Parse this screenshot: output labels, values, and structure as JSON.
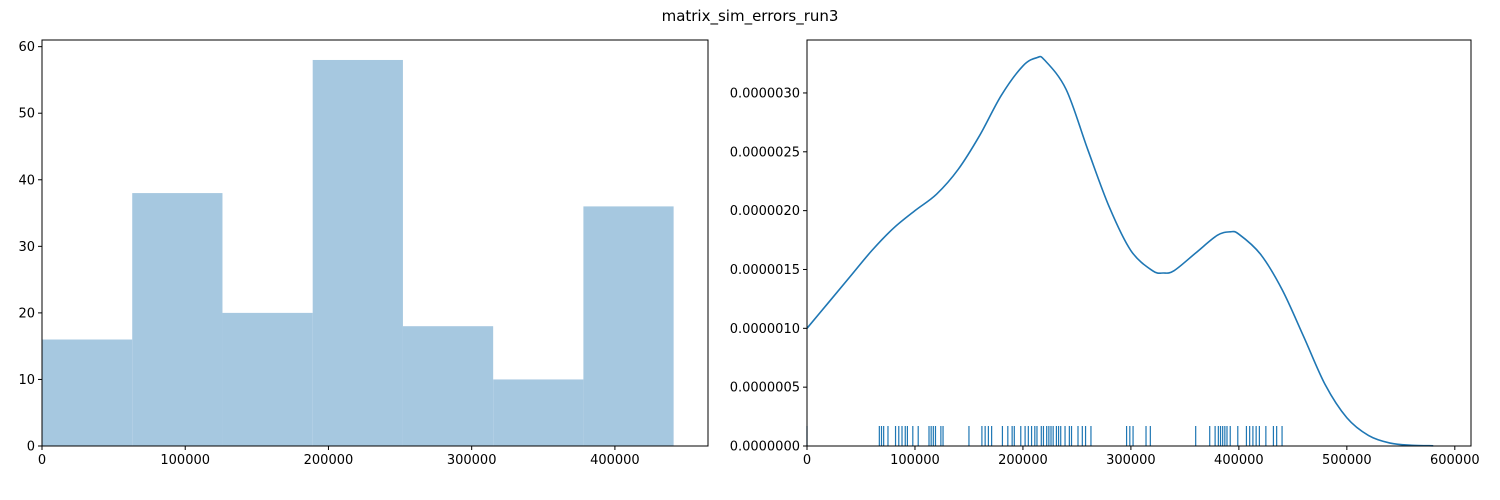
{
  "figure": {
    "title": "matrix_sim_errors_run3"
  },
  "chart_data": [
    {
      "type": "bar",
      "subtype": "histogram",
      "title": "",
      "xlabel": "",
      "ylabel": "",
      "bin_edges": [
        0,
        63000,
        126000,
        189000,
        252000,
        315000,
        378000,
        441000
      ],
      "values": [
        16,
        38,
        20,
        58,
        18,
        10,
        36
      ],
      "xlim": [
        0,
        465000
      ],
      "ylim": [
        0,
        61
      ],
      "xticks": [
        0,
        100000,
        200000,
        300000,
        400000
      ],
      "xtick_labels": [
        "0",
        "100000",
        "200000",
        "300000",
        "400000"
      ],
      "yticks": [
        0,
        10,
        20,
        30,
        40,
        50,
        60
      ],
      "ytick_labels": [
        "0",
        "10",
        "20",
        "30",
        "40",
        "50",
        "60"
      ],
      "color": "#a6c8e0",
      "grid": false
    },
    {
      "type": "line",
      "subtype": "kde-with-rug",
      "title": "",
      "xlabel": "",
      "ylabel": "",
      "x": [
        0,
        20000,
        40000,
        60000,
        80000,
        100000,
        120000,
        140000,
        160000,
        180000,
        200000,
        213000,
        220000,
        240000,
        260000,
        280000,
        300000,
        320000,
        330000,
        340000,
        360000,
        380000,
        392000,
        400000,
        420000,
        440000,
        460000,
        480000,
        500000,
        520000,
        540000,
        560000,
        580000
      ],
      "y": [
        1e-06,
        1.22e-06,
        1.44e-06,
        1.66e-06,
        1.85e-06,
        2e-06,
        2.14e-06,
        2.35e-06,
        2.64e-06,
        2.98e-06,
        3.23e-06,
        3.3e-06,
        3.28e-06,
        3.03e-06,
        2.52e-06,
        2.03e-06,
        1.66e-06,
        1.49e-06,
        1.47e-06,
        1.49e-06,
        1.64e-06,
        1.79e-06,
        1.82e-06,
        1.8e-06,
        1.63e-06,
        1.33e-06,
        9.3e-07,
        5.2e-07,
        2.4e-07,
        9e-08,
        2.5e-08,
        6e-09,
        2e-09
      ],
      "rug": [
        0,
        67000,
        69000,
        71000,
        75000,
        82000,
        85000,
        88000,
        91000,
        93000,
        98000,
        103000,
        113000,
        115000,
        117000,
        119000,
        124000,
        126000,
        150000,
        162000,
        165000,
        168000,
        171000,
        181000,
        186000,
        190000,
        192000,
        198000,
        202000,
        205000,
        208000,
        211000,
        213000,
        217000,
        219000,
        222000,
        224000,
        226000,
        228000,
        231000,
        233000,
        235000,
        239000,
        243000,
        245000,
        251000,
        255000,
        258000,
        263000,
        296000,
        299000,
        302000,
        314000,
        318000,
        360000,
        373000,
        378000,
        381000,
        383000,
        385000,
        387000,
        389000,
        392000,
        399000,
        407000,
        410000,
        413000,
        416000,
        419000,
        425000,
        432000,
        435000,
        440000
      ],
      "xlim": [
        0,
        615000
      ],
      "ylim": [
        0,
        3.45e-06
      ],
      "xticks": [
        0,
        100000,
        200000,
        300000,
        400000,
        500000,
        600000
      ],
      "xtick_labels": [
        "0",
        "100000",
        "200000",
        "300000",
        "400000",
        "500000",
        "600000"
      ],
      "yticks": [
        0,
        5e-07,
        1e-06,
        1.5e-06,
        2e-06,
        2.5e-06,
        3e-06
      ],
      "ytick_labels": [
        "0.0000000",
        "0.0000005",
        "0.0000010",
        "0.0000015",
        "0.0000020",
        "0.0000025",
        "0.0000030"
      ],
      "color": "#1f77b4",
      "grid": false
    }
  ]
}
